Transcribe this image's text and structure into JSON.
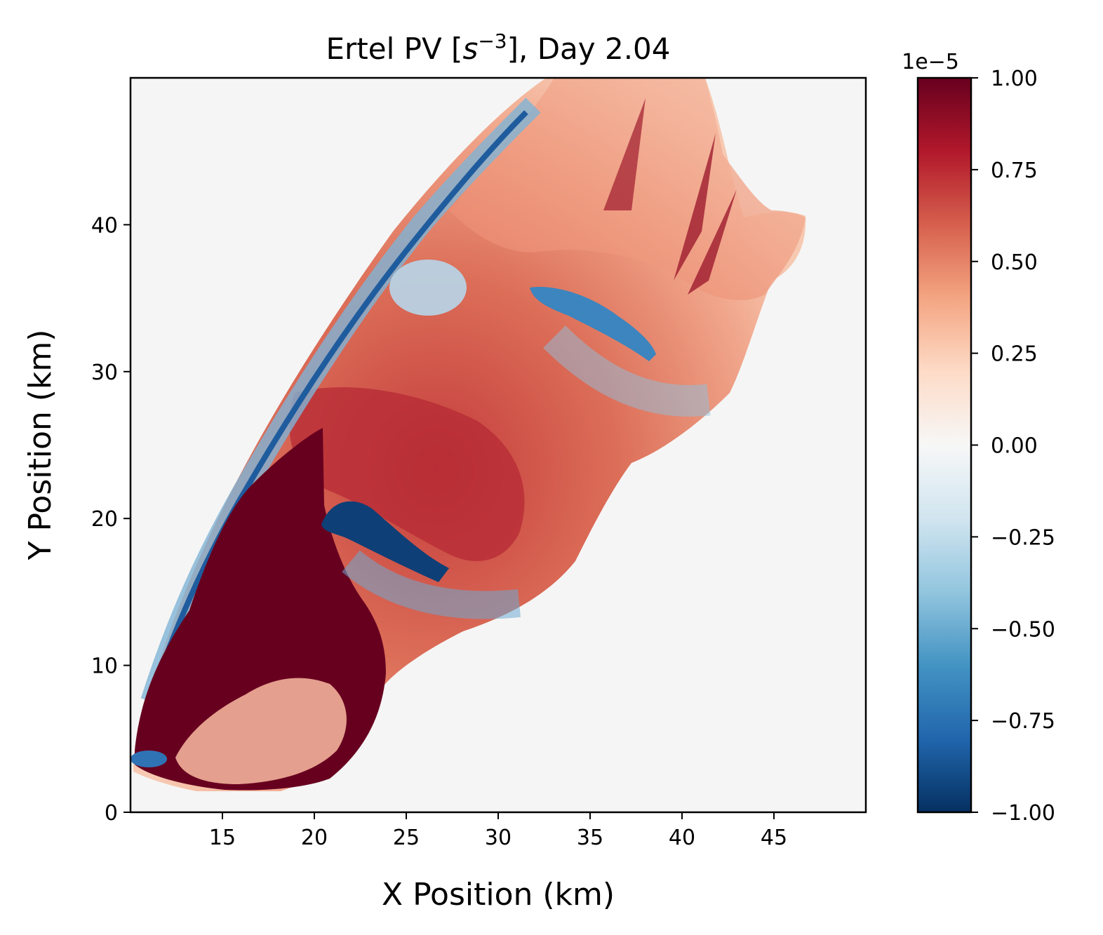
{
  "chart_data": {
    "type": "heatmap",
    "title_main": "Ertel PV [",
    "title_base": "s",
    "title_exp": "−3",
    "title_tail": "], Day 2.04",
    "xlabel": "X Position (km)",
    "ylabel": "Y Position (km)",
    "xlim": [
      10,
      50
    ],
    "ylim": [
      0,
      50
    ],
    "xticks": [
      15,
      20,
      25,
      30,
      35,
      40,
      45
    ],
    "yticks": [
      0,
      10,
      20,
      30,
      40
    ],
    "colorbar": {
      "colormap": "RdBu_r",
      "range": [
        -1.0,
        1.0
      ],
      "offset_label": "1e−5",
      "ticks": [
        1.0,
        0.75,
        0.5,
        0.25,
        0.0,
        -0.25,
        -0.5,
        -0.75,
        -1.0
      ],
      "tick_labels": [
        "1.00",
        "0.75",
        "0.50",
        "0.25",
        "0.00",
        "−0.25",
        "−0.50",
        "−0.75",
        "−1.00"
      ]
    },
    "background_value": 0.0,
    "field_regions": [
      {
        "name": "saturated-positive-core",
        "value": 1.0
      },
      {
        "name": "positive-plume",
        "value": 0.45
      },
      {
        "name": "positive-max-band",
        "value": 0.75
      },
      {
        "name": "negative-edge-band",
        "value": -0.4
      },
      {
        "name": "negative-filament-lower",
        "value": -1.0
      },
      {
        "name": "negative-filament-upper",
        "value": -0.6
      },
      {
        "name": "negative-patch",
        "value": -0.25
      }
    ],
    "colors": {
      "pos_max": "#67001f",
      "pos_high": "#b2182b",
      "pos_mid": "#d6604d",
      "pos_low": "#f4a582",
      "pos_faint": "#fddbc7",
      "zero": "#f7f7f7",
      "neg_faint": "#d1e5f0",
      "neg_low": "#92c5de",
      "neg_mid": "#4393c3",
      "neg_high": "#2166ac",
      "neg_max": "#053061"
    }
  }
}
